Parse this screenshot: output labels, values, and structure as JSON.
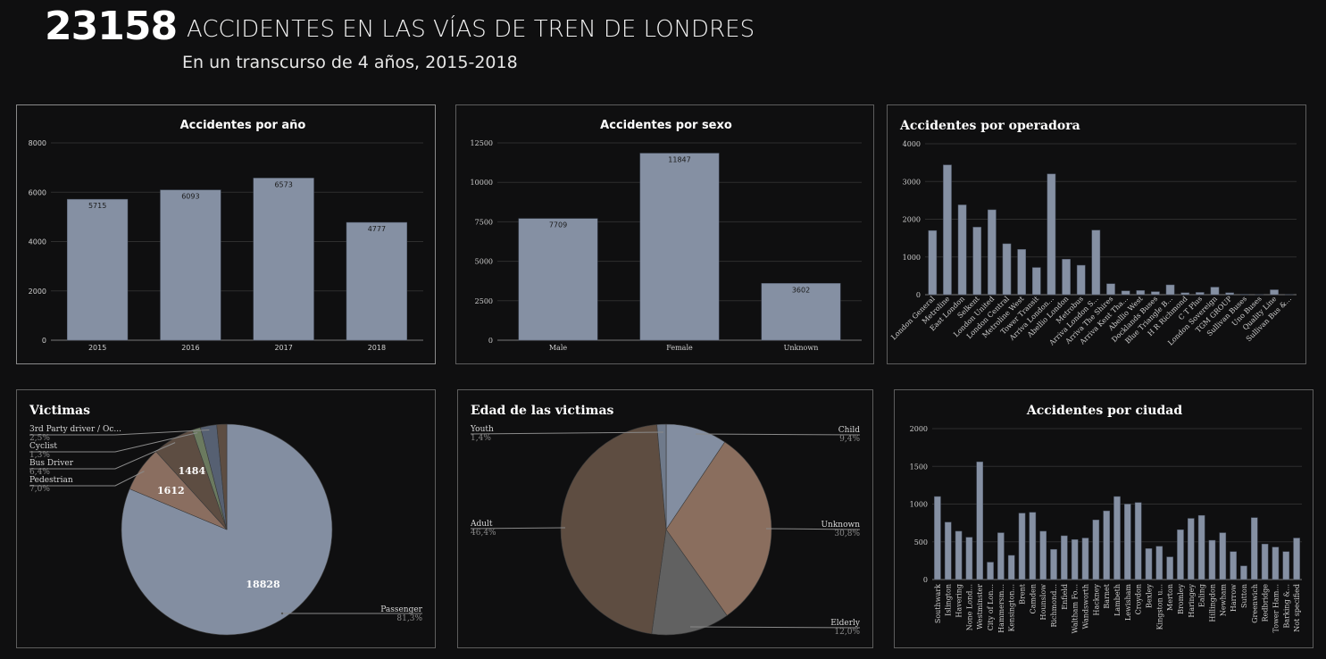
{
  "header": {
    "total": "23158",
    "title": "ACCIDENTES EN LAS VÍAS DE TREN DE LONDRES",
    "subtitle": "En un transcurso de 4 años, 2015-2018"
  },
  "colors": {
    "background": "#0f0f10",
    "bar": "#8590a3",
    "slice_passenger": "#838ea1",
    "slice_pedestrian": "#8a6e60",
    "slice_bus_driver": "#5d4d42",
    "slice_cyclist": "#6b7a5f",
    "slice_third_party": "#566072",
    "slice_adult": "#5e4d41",
    "slice_unknown": "#8a6e5e",
    "slice_child": "#838ea1",
    "slice_elderly": "#616161",
    "slice_youth": "#6f7a8b"
  },
  "chart_data": [
    {
      "id": "year",
      "type": "bar",
      "title": "Accidentes por año",
      "categories": [
        "2015",
        "2016",
        "2017",
        "2018"
      ],
      "values": [
        5715,
        6093,
        6573,
        4777
      ],
      "ylim": [
        0,
        8000
      ],
      "yticks": [
        0,
        2000,
        4000,
        6000,
        8000
      ],
      "data_labels": true,
      "grid": true
    },
    {
      "id": "sex",
      "type": "bar",
      "title": "Accidentes por sexo",
      "categories": [
        "Male",
        "Female",
        "Unknown"
      ],
      "values": [
        7709,
        11847,
        3602
      ],
      "ylim": [
        0,
        12500
      ],
      "yticks": [
        0,
        2500,
        5000,
        7500,
        10000,
        12500
      ],
      "data_labels": true,
      "grid": true
    },
    {
      "id": "operator",
      "type": "bar",
      "title": "Accidentes por operadora",
      "categories": [
        "London General",
        "Metroline",
        "East London",
        "Selkent",
        "London United",
        "London Central",
        "Metroline West",
        "Tower Transit",
        "Arriva London...",
        "Abellio London",
        "Metrobus",
        "Arriva London S...",
        "Arriva The Shires",
        "Arriva Kent Tha...",
        "Abellio West",
        "Docklands Buses",
        "Blue Triangle B...",
        "H R Richmond",
        "C T Plus",
        "London Sovereign",
        "TGM GROUP",
        "Sullivan Buses",
        "Uno Buses",
        "Quality Line",
        "Sullivan Bus &..."
      ],
      "values": [
        1700,
        3440,
        2380,
        1790,
        2250,
        1350,
        1200,
        720,
        3200,
        940,
        780,
        1710,
        290,
        100,
        110,
        80,
        260,
        50,
        60,
        200,
        50,
        10,
        5,
        130,
        5
      ],
      "ylim": [
        0,
        4000
      ],
      "yticks": [
        0,
        1000,
        2000,
        3000,
        4000
      ],
      "grid": true
    },
    {
      "id": "victims",
      "type": "pie",
      "title": "Victimas",
      "slices": [
        {
          "name": "Passenger",
          "value": 18828,
          "pct": "81,3%",
          "label": "18828"
        },
        {
          "name": "Pedestrian",
          "value": 1612,
          "pct": "7,0%",
          "label": "1612"
        },
        {
          "name": "Bus Driver",
          "value": 1484,
          "pct": "6,4%",
          "label": "1484"
        },
        {
          "name": "Cyclist",
          "value": 301,
          "pct": "1,3%",
          "label": ""
        },
        {
          "name": "3rd Party driver / Oc...",
          "value": 579,
          "pct": "2,5%",
          "label": ""
        },
        {
          "name": "",
          "value": 354,
          "pct": "",
          "label": ""
        }
      ]
    },
    {
      "id": "age",
      "type": "pie",
      "title": "Edad de las victimas",
      "slices": [
        {
          "name": "Child",
          "value": 9.4,
          "pct": "9,4%"
        },
        {
          "name": "Unknown",
          "value": 30.8,
          "pct": "30,8%"
        },
        {
          "name": "Elderly",
          "value": 12.0,
          "pct": "12,0%"
        },
        {
          "name": "Adult",
          "value": 46.4,
          "pct": "46,4%"
        },
        {
          "name": "Youth",
          "value": 1.4,
          "pct": "1,4%"
        }
      ]
    },
    {
      "id": "city",
      "type": "bar",
      "title": "Accidentes por ciudad",
      "categories": [
        "Southwark",
        "Islington",
        "Havering",
        "None Lond...",
        "Westminster",
        "City of Lon...",
        "Hammersm...",
        "Kensington...",
        "Brent",
        "Camden",
        "Hounslow",
        "Richmond...",
        "Enfield",
        "Waltham Fo...",
        "Wandsworth",
        "Hackney",
        "Barnet",
        "Lambeth",
        "Lewisham",
        "Croydon",
        "Bexley",
        "Kingston u...",
        "Merton",
        "Bromley",
        "Haringey",
        "Ealing",
        "Hillingdon",
        "Newham",
        "Harrow",
        "Sutton",
        "Greenwich",
        "Redbridge",
        "Tower Ham...",
        "Barking &...",
        "Not specified"
      ],
      "values": [
        1100,
        760,
        640,
        560,
        1560,
        230,
        620,
        320,
        880,
        890,
        640,
        400,
        580,
        530,
        550,
        790,
        910,
        1100,
        1000,
        1020,
        410,
        440,
        300,
        660,
        810,
        850,
        520,
        620,
        370,
        180,
        820,
        470,
        430,
        370,
        550
      ],
      "ylim": [
        0,
        2000
      ],
      "yticks": [
        0,
        500,
        1000,
        1500,
        2000
      ],
      "grid": true
    }
  ]
}
